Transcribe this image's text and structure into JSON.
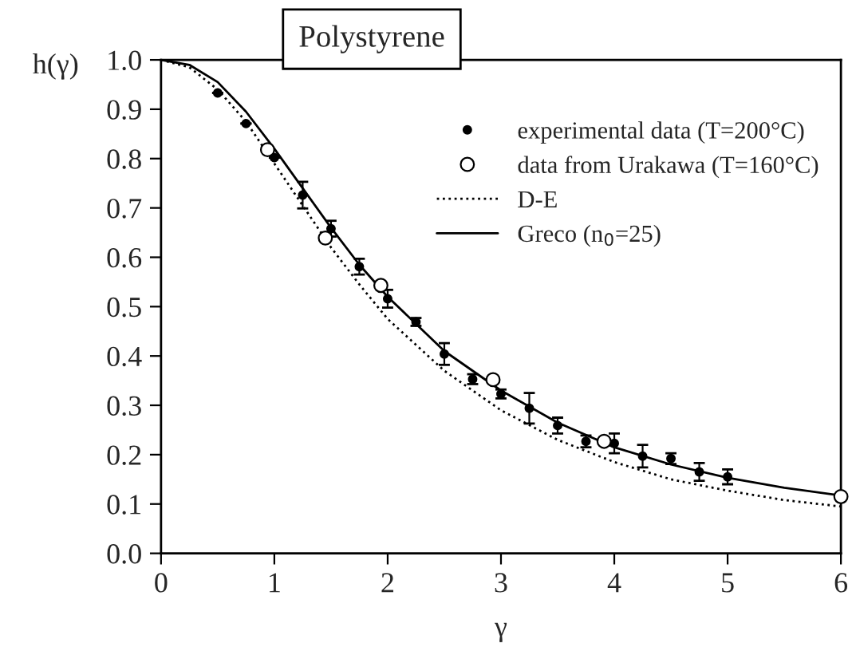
{
  "chart_data": {
    "type": "scatter",
    "title": "Polystyrene",
    "xlabel": "γ",
    "ylabel": "h(γ)",
    "xlim": [
      0,
      6
    ],
    "ylim": [
      0,
      1.0
    ],
    "xticks": [
      0,
      1,
      2,
      3,
      4,
      5,
      6
    ],
    "yticks": [
      {
        "value": 0,
        "label": "0.0"
      },
      {
        "value": 0.1,
        "label": "0.1"
      },
      {
        "value": 0.2,
        "label": "0.2"
      },
      {
        "value": 0.3,
        "label": "0.3"
      },
      {
        "value": 0.4,
        "label": "0.4"
      },
      {
        "value": 0.5,
        "label": "0.5"
      },
      {
        "value": 0.6,
        "label": "0.6"
      },
      {
        "value": 0.7,
        "label": "0.7"
      },
      {
        "value": 0.8,
        "label": "0.8"
      },
      {
        "value": 0.9,
        "label": "0.9"
      },
      {
        "value": 1.0,
        "label": "1.0"
      }
    ],
    "grid": false,
    "legend": "top right",
    "series": [
      {
        "name": "experimental data (T=200°C)",
        "marker": "circle",
        "color": "#000000",
        "x": [
          0.5,
          0.75,
          1.0,
          1.25,
          1.5,
          1.75,
          2.0,
          2.25,
          2.5,
          2.75,
          3.0,
          3.25,
          3.5,
          3.75,
          4.0,
          4.25,
          4.5,
          4.75,
          5.0
        ],
        "values": [
          0.933,
          0.871,
          0.802,
          0.726,
          0.658,
          0.581,
          0.516,
          0.469,
          0.404,
          0.353,
          0.323,
          0.294,
          0.259,
          0.227,
          0.223,
          0.197,
          0.192,
          0.165,
          0.155
        ],
        "errors": [
          null,
          null,
          null,
          0.027,
          0.016,
          0.016,
          0.018,
          0.008,
          0.022,
          0.01,
          0.009,
          0.031,
          0.016,
          0.012,
          0.02,
          0.023,
          0.011,
          0.018,
          0.015
        ]
      },
      {
        "name": "data from Urakawa (T=160°C)",
        "marker": "circle",
        "color": "#000000",
        "x": [
          0.94,
          1.45,
          1.94,
          2.93,
          3.91,
          6.0
        ],
        "values": [
          0.818,
          0.639,
          0.543,
          0.352,
          0.227,
          0.115
        ]
      },
      {
        "name": "D-E",
        "type": "line",
        "line_style": "dotted",
        "marker": "none",
        "color": "#000000",
        "x": [
          0,
          0.25,
          0.5,
          0.75,
          1.0,
          1.25,
          1.5,
          1.75,
          2.0,
          2.5,
          3.0,
          3.5,
          4.0,
          4.5,
          5.0,
          5.5,
          6.0
        ],
        "values": [
          1.0,
          0.985,
          0.94,
          0.875,
          0.79,
          0.705,
          0.62,
          0.545,
          0.475,
          0.37,
          0.29,
          0.23,
          0.185,
          0.15,
          0.127,
          0.108,
          0.095
        ]
      },
      {
        "name": "Greco (n$_{0}$=25)",
        "type": "line",
        "line_style": "solid",
        "marker": "none",
        "color": "#000000",
        "x": [
          0,
          0.25,
          0.5,
          0.75,
          1.0,
          1.25,
          1.5,
          1.75,
          2.0,
          2.5,
          3.0,
          3.5,
          4.0,
          4.5,
          5.0,
          5.5,
          6.0
        ],
        "values": [
          1.0,
          0.99,
          0.955,
          0.895,
          0.82,
          0.74,
          0.66,
          0.585,
          0.52,
          0.41,
          0.33,
          0.265,
          0.215,
          0.18,
          0.153,
          0.133,
          0.117
        ]
      }
    ]
  }
}
